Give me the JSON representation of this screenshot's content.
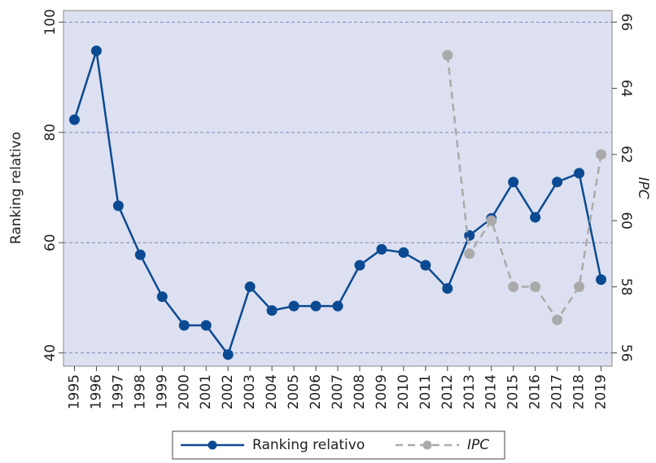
{
  "chart_data": {
    "type": "line",
    "categories": [
      "1995",
      "1996",
      "1997",
      "1998",
      "1999",
      "2000",
      "2001",
      "2002",
      "2003",
      "2004",
      "2005",
      "2006",
      "2007",
      "2008",
      "2009",
      "2010",
      "2011",
      "2012",
      "2013",
      "2014",
      "2015",
      "2016",
      "2017",
      "2018",
      "2019"
    ],
    "series": [
      {
        "name": "Ranking relativo",
        "color": "#0b4a92",
        "dash": false,
        "values": [
          82.3,
          94.8,
          66.7,
          57.8,
          50.2,
          45,
          45,
          39.7,
          52,
          47.7,
          48.5,
          48.5,
          48.5,
          55.9,
          58.8,
          58.2,
          55.9,
          51.7,
          61.3,
          64.4,
          71,
          64.6,
          71,
          72.6,
          53.3
        ]
      },
      {
        "name": "IPC",
        "color": "#aaaaaa",
        "dash": true,
        "axis": "y2",
        "values": [
          null,
          null,
          null,
          null,
          null,
          null,
          null,
          null,
          null,
          null,
          null,
          null,
          null,
          null,
          null,
          null,
          null,
          65,
          59,
          60,
          58,
          58,
          57,
          58,
          62
        ]
      }
    ],
    "y_label": "Ranking relativo",
    "y2_label": "IPC",
    "ylim": [
      37.6,
      102.1
    ],
    "yticks": [
      40,
      60,
      80,
      100
    ],
    "y2lim": [
      55.6,
      66.35
    ],
    "y2ticks": [
      56,
      58,
      60,
      62,
      64,
      66
    ],
    "grid": true,
    "legend": "bottom"
  }
}
